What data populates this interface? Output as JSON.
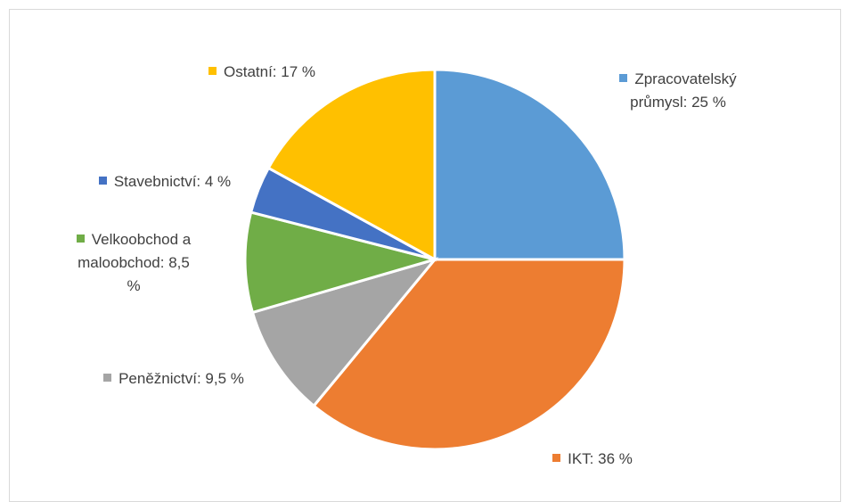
{
  "chart_data": {
    "type": "pie",
    "labels": [
      "Zpracovatelský průmysl: 25 %",
      "IKT: 36 %",
      "Peněžnictví: 9,5 %",
      "Velkoobchod a maloobchod: 8,5 %",
      "Stavebnictví: 4 %",
      "Ostatní: 17 %"
    ],
    "values": [
      25,
      36,
      9.5,
      8.5,
      4,
      17
    ],
    "colors": [
      "#5b9bd5",
      "#ed7d31",
      "#a5a5a5",
      "#70ad47",
      "#4472c4",
      "#ffc000"
    ]
  }
}
